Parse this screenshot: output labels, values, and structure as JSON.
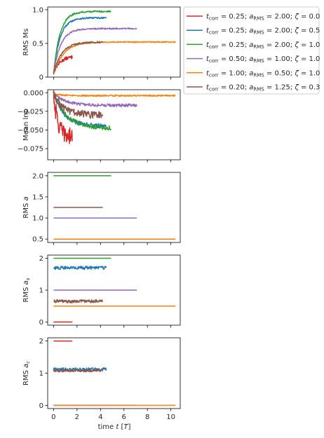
{
  "colors": {
    "red": "#d62728",
    "blue": "#1f77b4",
    "green": "#2ca02c",
    "purple": "#9467bd",
    "orange": "#ff7f0e",
    "brown": "#8c564b"
  },
  "legend": {
    "placement": "outside-right-top",
    "entries": [
      {
        "t_corr": "0.25",
        "a_rms": "2.00",
        "zeta": "0.0"
      },
      {
        "t_corr": "0.25",
        "a_rms": "2.00",
        "zeta": "0.5"
      },
      {
        "t_corr": "0.25",
        "a_rms": "2.00",
        "zeta": "1.0"
      },
      {
        "t_corr": "0.50",
        "a_rms": "1.00",
        "zeta": "1.0"
      },
      {
        "t_corr": "1.00",
        "a_rms": "0.50",
        "zeta": "1.0"
      },
      {
        "t_corr": "0.20",
        "a_rms": "1.25",
        "zeta": "0.3"
      }
    ]
  },
  "x_axis": {
    "label_text": "time t [T]",
    "ticks": [
      0,
      2,
      4,
      6,
      8,
      10
    ],
    "xlim": [
      -0.5,
      10.8
    ]
  },
  "chart_data": [
    {
      "type": "line",
      "ylabel": "RMS Ms",
      "ylim": [
        0,
        1.04
      ],
      "yticks": [
        {
          "v": 0,
          "t": "0"
        },
        {
          "v": 0.5,
          "t": "0.5"
        },
        {
          "v": 1,
          "t": "1.0"
        }
      ],
      "series": [
        {
          "color_key": "red",
          "tmax": 1.6,
          "kind": "rise",
          "params": {
            "start": 0.06,
            "plateau": 0.31,
            "tau": 0.55,
            "noise": 0.025
          }
        },
        {
          "color_key": "blue",
          "tmax": 4.5,
          "kind": "rise",
          "params": {
            "start": 0.05,
            "plateau": 0.88,
            "tau": 0.55,
            "noise": 0.012
          }
        },
        {
          "color_key": "green",
          "tmax": 4.9,
          "kind": "rise",
          "params": {
            "start": 0.05,
            "plateau": 0.975,
            "tau": 0.55,
            "noise": 0.012
          }
        },
        {
          "color_key": "purple",
          "tmax": 7.1,
          "kind": "rise",
          "params": {
            "start": 0.05,
            "plateau": 0.72,
            "tau": 0.6,
            "noise": 0.01
          }
        },
        {
          "color_key": "orange",
          "tmax": 10.4,
          "kind": "rise",
          "params": {
            "start": 0.04,
            "plateau": 0.52,
            "tau": 0.85,
            "noise": 0.008
          }
        },
        {
          "color_key": "brown",
          "tmax": 4.2,
          "kind": "rise",
          "params": {
            "start": 0.05,
            "plateau": 0.52,
            "tau": 0.7,
            "noise": 0.012
          }
        }
      ]
    },
    {
      "type": "line",
      "ylabel": "Mean lnρ",
      "ylim": [
        -0.09,
        0.004
      ],
      "yticks": [
        {
          "v": 0,
          "t": "0.000"
        },
        {
          "v": -0.025,
          "t": "−0.025"
        },
        {
          "v": -0.05,
          "t": "−0.050"
        },
        {
          "v": -0.075,
          "t": "−0.075"
        }
      ],
      "series": [
        {
          "color_key": "red",
          "tmax": 1.6,
          "kind": "drop",
          "params": {
            "plateau": -0.06,
            "tau": 0.35,
            "noise": 0.012
          }
        },
        {
          "color_key": "blue",
          "tmax": 4.5,
          "kind": "drop",
          "params": {
            "plateau": -0.045,
            "tau": 0.9,
            "noise": 0.003
          }
        },
        {
          "color_key": "green",
          "tmax": 4.9,
          "kind": "drop",
          "params": {
            "plateau": -0.048,
            "tau": 1.1,
            "noise": 0.003
          }
        },
        {
          "color_key": "purple",
          "tmax": 7.1,
          "kind": "drop",
          "params": {
            "plateau": -0.017,
            "tau": 1.0,
            "noise": 0.002
          }
        },
        {
          "color_key": "orange",
          "tmax": 10.4,
          "kind": "drop",
          "params": {
            "plateau": -0.004,
            "tau": 0.5,
            "noise": 0.001
          }
        },
        {
          "color_key": "brown",
          "tmax": 4.2,
          "kind": "drop",
          "params": {
            "plateau": -0.03,
            "tau": 0.8,
            "noise": 0.005
          }
        }
      ]
    },
    {
      "type": "line",
      "ylabel": "RMS a",
      "ylim": [
        0.42,
        2.08
      ],
      "yticks": [
        {
          "v": 0.5,
          "t": "0.5"
        },
        {
          "v": 1,
          "t": "1.0"
        },
        {
          "v": 1.5,
          "t": "1.5"
        },
        {
          "v": 2,
          "t": "2.0"
        }
      ],
      "series": [
        {
          "color_key": "red",
          "tmax": 1.6,
          "kind": "const",
          "params": {
            "value": 2.0,
            "noise": 0
          }
        },
        {
          "color_key": "blue",
          "tmax": 4.5,
          "kind": "const",
          "params": {
            "value": 2.0,
            "noise": 0
          }
        },
        {
          "color_key": "green",
          "tmax": 4.9,
          "kind": "const",
          "params": {
            "value": 2.0,
            "noise": 0
          }
        },
        {
          "color_key": "purple",
          "tmax": 7.1,
          "kind": "const",
          "params": {
            "value": 1.0,
            "noise": 0
          }
        },
        {
          "color_key": "orange",
          "tmax": 10.4,
          "kind": "const",
          "params": {
            "value": 0.5,
            "noise": 0
          }
        },
        {
          "color_key": "brown",
          "tmax": 4.2,
          "kind": "const",
          "params": {
            "value": 1.25,
            "noise": 0
          }
        }
      ]
    },
    {
      "type": "line",
      "ylabel": "RMS a_s",
      "ylim": [
        -0.1,
        2.1
      ],
      "yticks": [
        {
          "v": 0,
          "t": "0"
        },
        {
          "v": 1,
          "t": "1"
        },
        {
          "v": 2,
          "t": "2"
        }
      ],
      "series": [
        {
          "color_key": "red",
          "tmax": 1.6,
          "kind": "const",
          "params": {
            "value": 0.0,
            "noise": 0
          }
        },
        {
          "color_key": "blue",
          "tmax": 4.5,
          "kind": "const",
          "params": {
            "value": 1.7,
            "noise": 0.05
          }
        },
        {
          "color_key": "green",
          "tmax": 4.9,
          "kind": "const",
          "params": {
            "value": 2.0,
            "noise": 0
          }
        },
        {
          "color_key": "purple",
          "tmax": 7.1,
          "kind": "const",
          "params": {
            "value": 1.0,
            "noise": 0
          }
        },
        {
          "color_key": "orange",
          "tmax": 10.4,
          "kind": "const",
          "params": {
            "value": 0.5,
            "noise": 0
          }
        },
        {
          "color_key": "brown",
          "tmax": 4.2,
          "kind": "const",
          "params": {
            "value": 0.65,
            "noise": 0.05
          }
        }
      ]
    },
    {
      "type": "line",
      "ylabel": "RMS a_c",
      "ylim": [
        -0.1,
        2.1
      ],
      "yticks": [
        {
          "v": 0,
          "t": "0"
        },
        {
          "v": 1,
          "t": "1"
        },
        {
          "v": 2,
          "t": "2"
        }
      ],
      "series": [
        {
          "color_key": "red",
          "tmax": 1.6,
          "kind": "const",
          "params": {
            "value": 2.0,
            "noise": 0
          }
        },
        {
          "color_key": "blue",
          "tmax": 4.5,
          "kind": "const",
          "params": {
            "value": 1.12,
            "noise": 0.05
          }
        },
        {
          "color_key": "green",
          "tmax": 4.9,
          "kind": "const",
          "params": {
            "value": 0.0,
            "noise": 0
          }
        },
        {
          "color_key": "purple",
          "tmax": 7.1,
          "kind": "const",
          "params": {
            "value": 0.0,
            "noise": 0
          }
        },
        {
          "color_key": "orange",
          "tmax": 10.4,
          "kind": "const",
          "params": {
            "value": 0.0,
            "noise": 0
          }
        },
        {
          "color_key": "brown",
          "tmax": 4.2,
          "kind": "const",
          "params": {
            "value": 1.08,
            "noise": 0.04
          }
        }
      ]
    }
  ]
}
